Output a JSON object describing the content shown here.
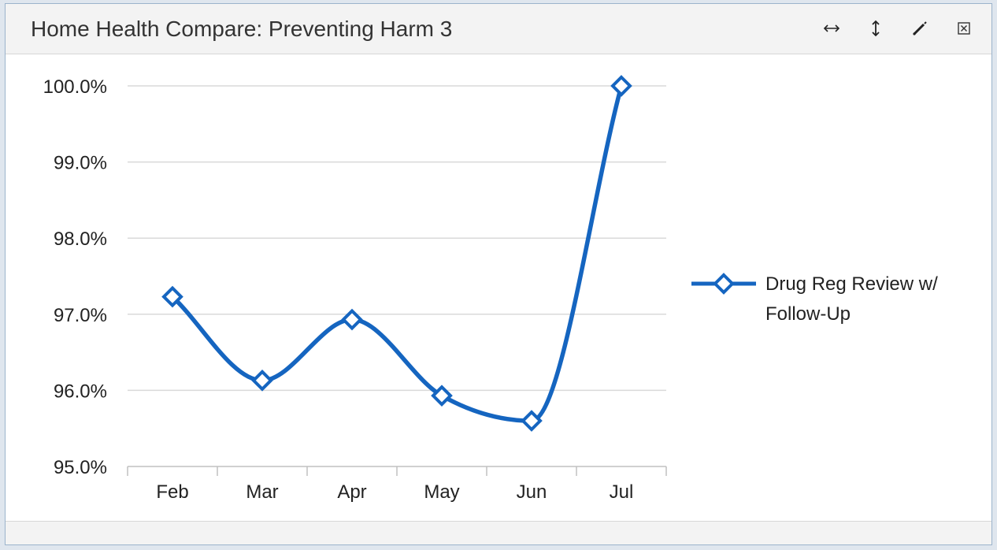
{
  "panel": {
    "title": "Home Health Compare: Preventing Harm 3",
    "tools": [
      "resize-horizontal-icon",
      "resize-vertical-icon",
      "edit-icon",
      "close-icon"
    ]
  },
  "chart_data": {
    "type": "line",
    "categories": [
      "Feb",
      "Mar",
      "Apr",
      "May",
      "Jun",
      "Jul"
    ],
    "series": [
      {
        "name": "Drug Reg Review w/ Follow-Up",
        "values": [
          97.23,
          96.13,
          96.93,
          95.93,
          95.6,
          100.0
        ],
        "color": "#1565c0"
      }
    ],
    "ylim": [
      95,
      100
    ],
    "yticks": [
      "95.0%",
      "96.0%",
      "97.0%",
      "98.0%",
      "99.0%",
      "100.0%"
    ],
    "grid": true,
    "legend": "right",
    "legend_lines": [
      "Drug Reg Review w/",
      "Follow-Up"
    ],
    "smooth": true
  }
}
